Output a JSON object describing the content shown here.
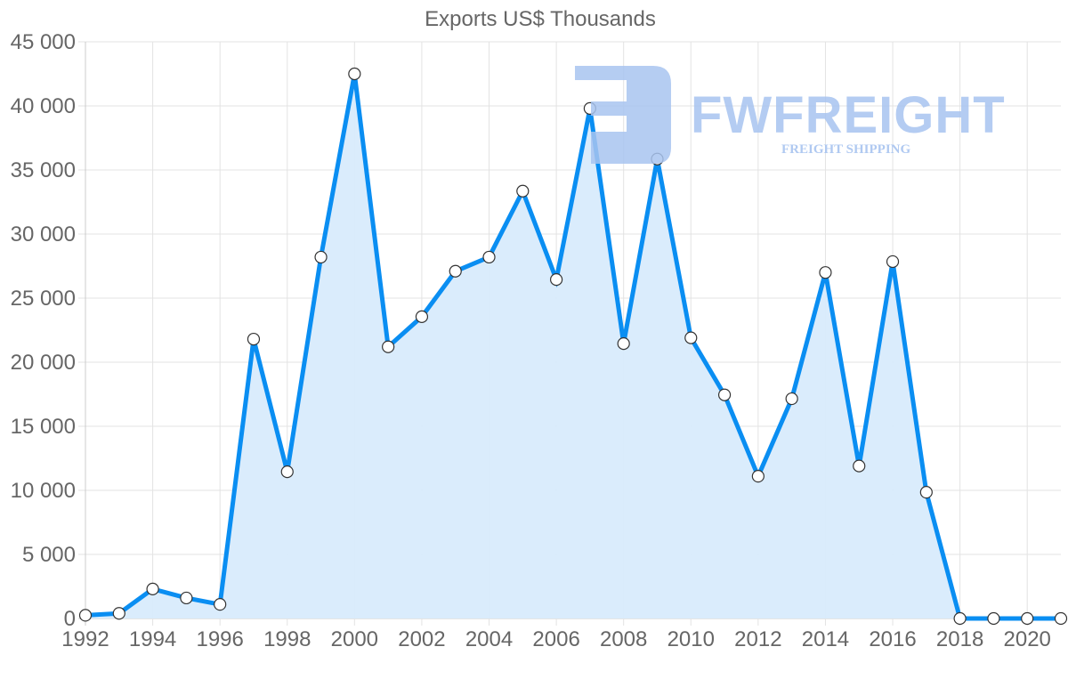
{
  "chart_data": {
    "type": "area",
    "title": "Exports US$ Thousands",
    "xlabel": "",
    "ylabel": "",
    "categories": [
      "1992",
      "1993",
      "1994",
      "1995",
      "1996",
      "1997",
      "1998",
      "1999",
      "2000",
      "2001",
      "2002",
      "2003",
      "2004",
      "2005",
      "2006",
      "2007",
      "2008",
      "2009",
      "2010",
      "2011",
      "2012",
      "2013",
      "2014",
      "2015",
      "2016",
      "2017",
      "2018",
      "2019",
      "2020",
      "2021"
    ],
    "series": [
      {
        "name": "Exports US$ Thousands",
        "values": [
          250,
          400,
          2300,
          1600,
          1100,
          21800,
          11450,
          28200,
          42500,
          21200,
          23550,
          27100,
          28200,
          33350,
          26450,
          39800,
          21450,
          35850,
          21900,
          17450,
          11100,
          17150,
          27000,
          11900,
          27850,
          9850,
          0,
          0,
          0,
          0
        ]
      }
    ],
    "ylim": [
      0,
      45000
    ],
    "yticks": [
      0,
      5000,
      10000,
      15000,
      20000,
      25000,
      30000,
      35000,
      40000,
      45000
    ],
    "ytick_labels": [
      "0",
      "5 000",
      "10 000",
      "15 000",
      "20 000",
      "25 000",
      "30 000",
      "35 000",
      "40 000",
      "45 000"
    ],
    "xtick_labels": [
      "1992",
      "1994",
      "1996",
      "1998",
      "2000",
      "2002",
      "2004",
      "2006",
      "2008",
      "2010",
      "2012",
      "2014",
      "2016",
      "2018",
      "2020"
    ],
    "grid": true,
    "legend": "none",
    "colors": {
      "line": "#0a8ef2",
      "fill": "#d8ebfc",
      "point_fill": "#ffffff",
      "point_stroke": "#333333",
      "grid": "#e3e3e3"
    }
  },
  "watermark": {
    "brand": "FWFREIGHT",
    "tagline": "FREIGHT SHIPPING"
  }
}
